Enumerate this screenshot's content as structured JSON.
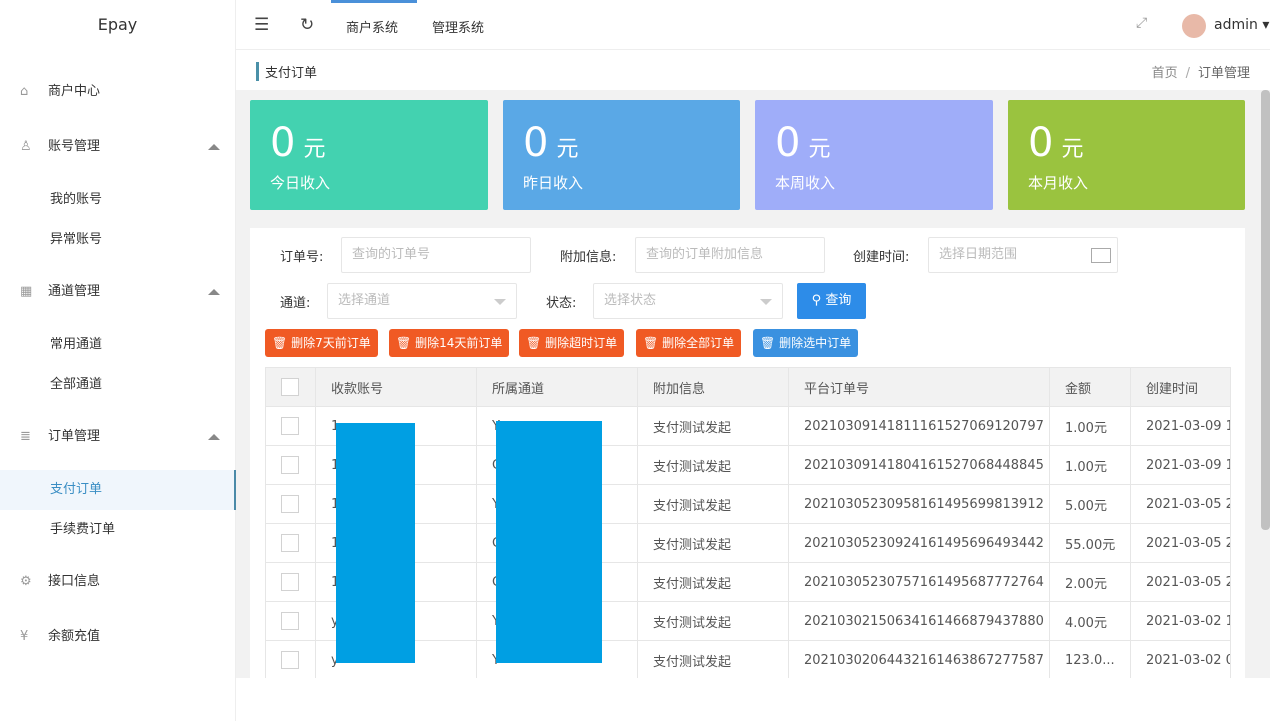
{
  "app": {
    "title": "Epay"
  },
  "sidebar": {
    "items": [
      {
        "label": "商户中心",
        "icon": "home-icon"
      },
      {
        "label": "账号管理",
        "icon": "user-icon",
        "children": [
          "我的账号",
          "异常账号"
        ]
      },
      {
        "label": "通道管理",
        "icon": "apps-icon",
        "children": [
          "常用通道",
          "全部通道"
        ]
      },
      {
        "label": "订单管理",
        "icon": "list-icon",
        "children": [
          "支付订单",
          "手续费订单"
        ]
      },
      {
        "label": "接口信息",
        "icon": "gear-icon"
      },
      {
        "label": "余额充值",
        "icon": "yen-icon"
      }
    ],
    "active": "支付订单"
  },
  "header": {
    "nav": [
      "商户系统",
      "管理系统"
    ],
    "user": "admin"
  },
  "breadcrumb": {
    "title": "支付订单",
    "items": [
      "首页",
      "订单管理"
    ]
  },
  "cards": [
    {
      "value": "0",
      "unit": "元",
      "label": "今日收入",
      "color": "#43d2b0"
    },
    {
      "value": "0",
      "unit": "元",
      "label": "昨日收入",
      "color": "#5aa8e6"
    },
    {
      "value": "0",
      "unit": "元",
      "label": "本周收入",
      "color": "#9fadf9"
    },
    {
      "value": "0",
      "unit": "元",
      "label": "本月收入",
      "color": "#9ac33f"
    }
  ],
  "filters": {
    "order_no": {
      "label": "订单号:",
      "placeholder": "查询的订单号"
    },
    "extra": {
      "label": "附加信息:",
      "placeholder": "查询的订单附加信息"
    },
    "created": {
      "label": "创建时间:",
      "placeholder": "选择日期范围"
    },
    "channel": {
      "label": "通道:",
      "placeholder": "选择通道"
    },
    "status": {
      "label": "状态:",
      "placeholder": "选择状态"
    },
    "search": "查询"
  },
  "actions": [
    "删除7天前订单",
    "删除14天前订单",
    "删除超时订单",
    "删除全部订单",
    "删除选中订单"
  ],
  "table": {
    "columns": [
      "收款账号",
      "所属通道",
      "附加信息",
      "平台订单号",
      "金额",
      "创建时间"
    ],
    "rows": [
      [
        "1",
        "Y",
        "支付测试发起",
        "20210309141811161527069120797",
        "1.00元",
        "2021-03-09 1"
      ],
      [
        "1",
        "C",
        "支付测试发起",
        "20210309141804161527068448845",
        "1.00元",
        "2021-03-09 1"
      ],
      [
        "1",
        "Y",
        "支付测试发起",
        "20210305230958161495699813912",
        "5.00元",
        "2021-03-05 2"
      ],
      [
        "1",
        "C",
        "支付测试发起",
        "20210305230924161495696493442",
        "55.00元",
        "2021-03-05 2"
      ],
      [
        "1",
        "C",
        "支付测试发起",
        "20210305230757161495687772764",
        "2.00元",
        "2021-03-05 2"
      ],
      [
        "y",
        "Y",
        "支付测试发起",
        "20210302150634161466879437880",
        "4.00元",
        "2021-03-02 1"
      ],
      [
        "y",
        "Y",
        "支付测试发起",
        "20210302064432161463867277587",
        "123.0...",
        "2021-03-02 0"
      ]
    ]
  }
}
